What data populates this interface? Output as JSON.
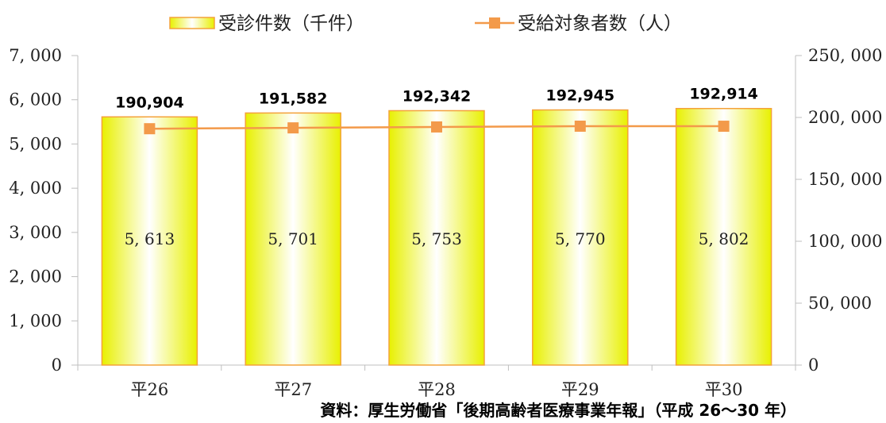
{
  "legend": {
    "bar_label": "受診件数（千件）",
    "line_label": "受給対象者数（人）"
  },
  "source_note": "資料：厚生労働省「後期高齢者医療事業年報」（平成 26〜30 年）",
  "colors": {
    "bar_center": "#ffffff",
    "bar_edge": "#e8f000",
    "bar_border": "#f4a23a",
    "line": "#f39a4a",
    "marker": "#f39a4a",
    "axis": "#bfbfbf"
  },
  "chart_data": {
    "type": "bar",
    "categories": [
      "平26",
      "平27",
      "平28",
      "平29",
      "平30"
    ],
    "series": [
      {
        "name": "受診件数（千件）",
        "type": "bar",
        "axis": "left",
        "values": [
          5613,
          5701,
          5753,
          5770,
          5802
        ],
        "value_labels": [
          "5, 613",
          "5, 701",
          "5, 753",
          "5, 770",
          "5, 802"
        ]
      },
      {
        "name": "受給対象者数（人）",
        "type": "line",
        "axis": "right",
        "values": [
          190904,
          191582,
          192342,
          192945,
          192914
        ],
        "value_labels": [
          "190,904",
          "191,582",
          "192,342",
          "192,945",
          "192,914"
        ]
      }
    ],
    "y_left": {
      "ylim": [
        0,
        7000
      ],
      "ticks": [
        0,
        1000,
        2000,
        3000,
        4000,
        5000,
        6000,
        7000
      ],
      "tick_labels": [
        "0",
        "1, 000",
        "2, 000",
        "3, 000",
        "4, 000",
        "5, 000",
        "6, 000",
        "7, 000"
      ]
    },
    "y_right": {
      "ylim": [
        0,
        250000
      ],
      "ticks": [
        0,
        50000,
        100000,
        150000,
        200000,
        250000
      ],
      "tick_labels": [
        "0",
        "50, 000",
        "100, 000",
        "150, 000",
        "200, 000",
        "250, 000"
      ]
    },
    "grid": false,
    "legend_position": "top-center"
  }
}
